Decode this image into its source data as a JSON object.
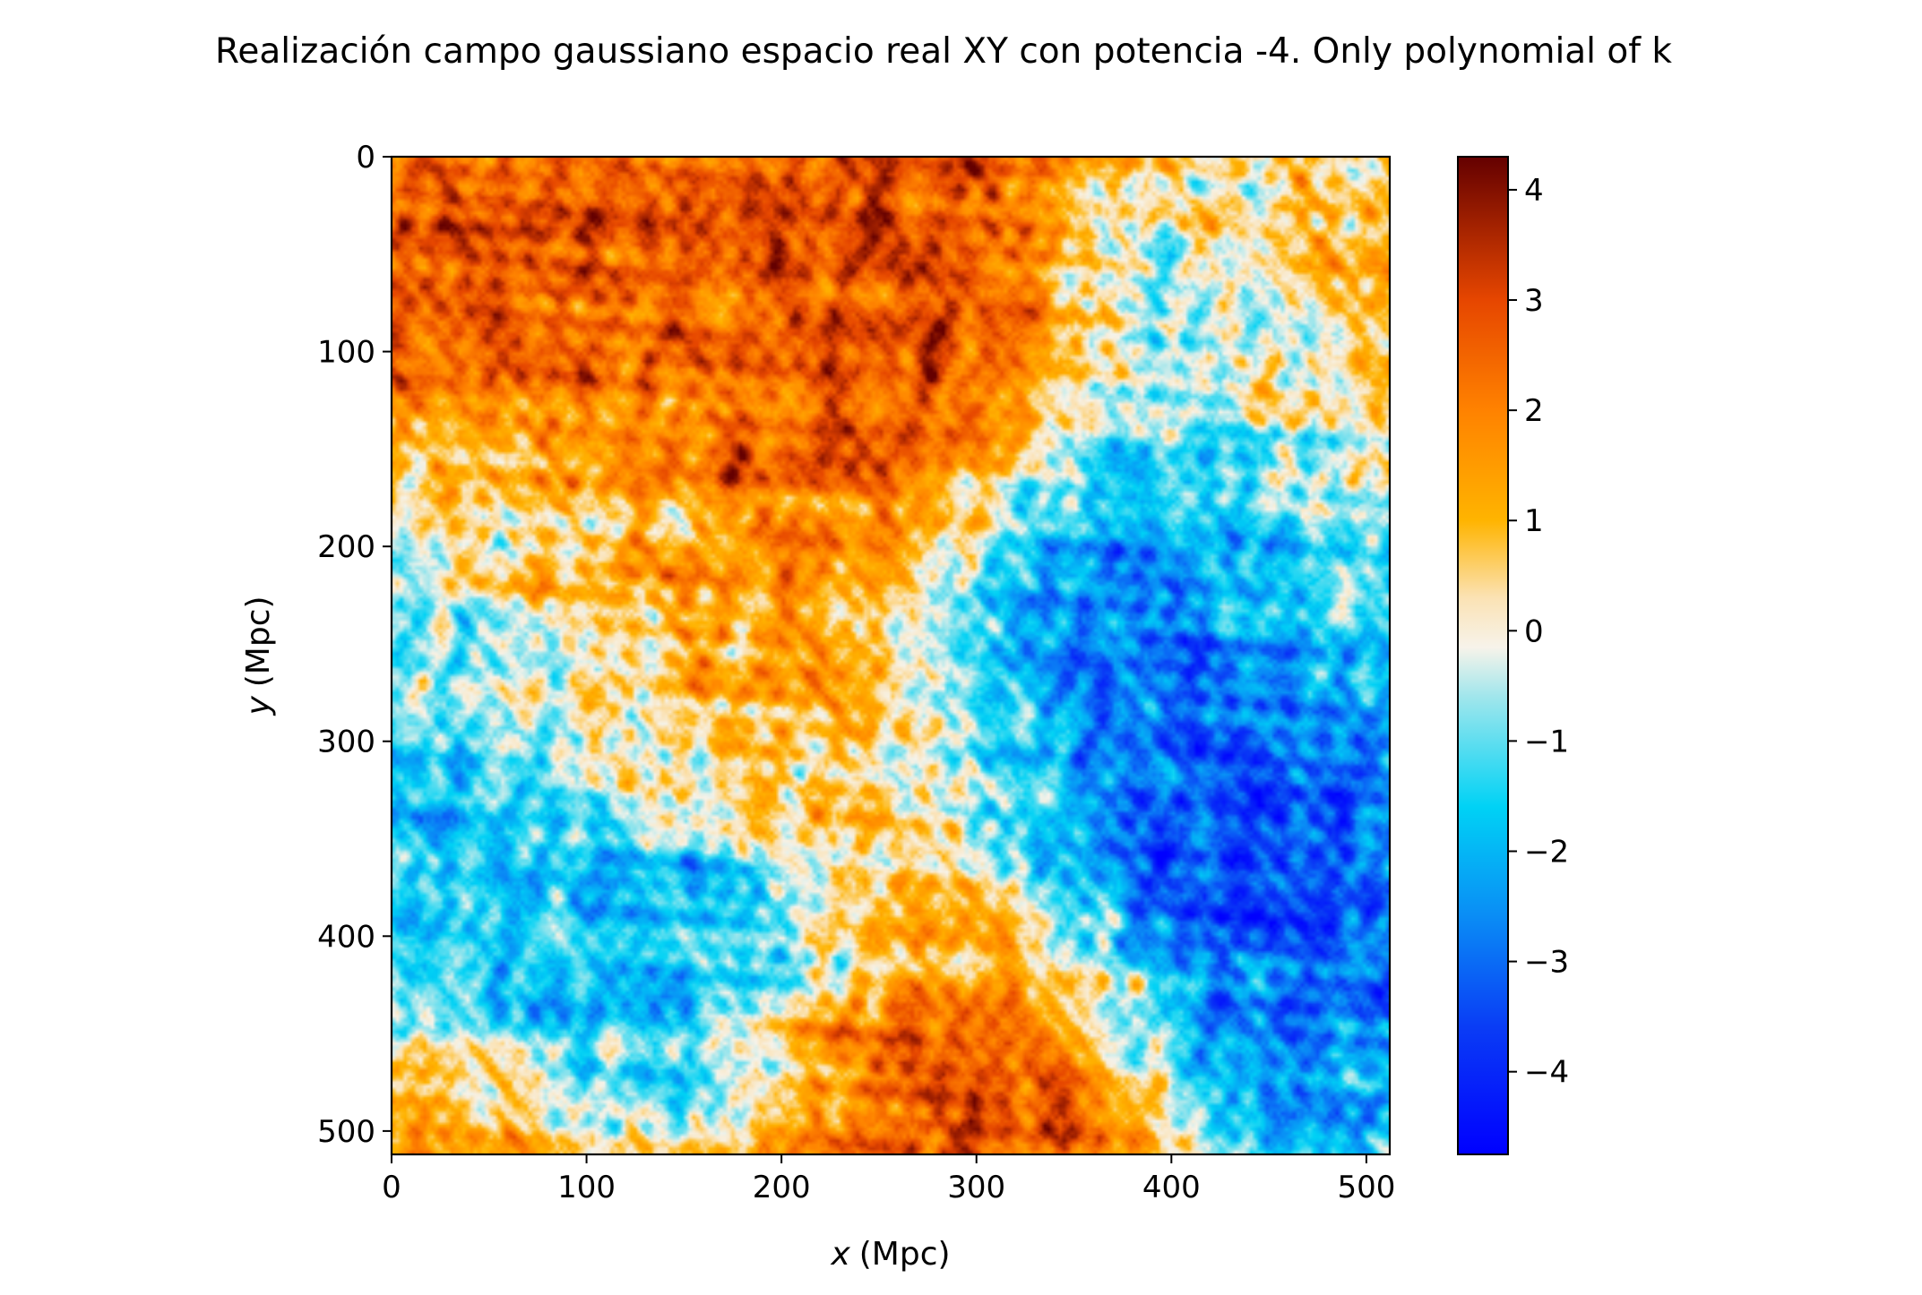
{
  "chart_data": {
    "type": "heatmap",
    "title": "Realización campo gaussiano espacio real XY con potencia -4. Only polynomial of k",
    "xlabel_var": "x",
    "xlabel_unit": "(Mpc)",
    "ylabel_var": "y",
    "ylabel_unit": "(Mpc)",
    "xlim": [
      0,
      512
    ],
    "ylim": [
      512,
      0
    ],
    "x_ticks": [
      0,
      100,
      200,
      300,
      400,
      500
    ],
    "y_ticks": [
      0,
      100,
      200,
      300,
      400,
      500
    ],
    "x_tick_labels": [
      "0",
      "100",
      "200",
      "300",
      "400",
      "500"
    ],
    "y_tick_labels": [
      "0",
      "100",
      "200",
      "300",
      "400",
      "500"
    ],
    "colorbar": {
      "range": [
        -4.75,
        4.3
      ],
      "ticks": [
        4,
        3,
        2,
        1,
        0,
        -1,
        -2,
        -3,
        -4
      ],
      "tick_labels": [
        "4",
        "3",
        "2",
        "1",
        "0",
        "−1",
        "−2",
        "−3",
        "−4"
      ],
      "colormap": [
        {
          "value": -4.75,
          "color": "#0000ff"
        },
        {
          "value": -3.6,
          "color": "#0a3cf5"
        },
        {
          "value": -2.6,
          "color": "#0a8cf5"
        },
        {
          "value": -1.6,
          "color": "#00d2f5"
        },
        {
          "value": -0.6,
          "color": "#a0e6ec"
        },
        {
          "value": -0.15,
          "color": "#f7f3ea"
        },
        {
          "value": 0.3,
          "color": "#fbe2b4"
        },
        {
          "value": 1.0,
          "color": "#ffb400"
        },
        {
          "value": 2.0,
          "color": "#ff8200"
        },
        {
          "value": 3.0,
          "color": "#e64600"
        },
        {
          "value": 4.3,
          "color": "#640000"
        }
      ]
    },
    "field_features": [
      {
        "x": 60,
        "y": 70,
        "value": 3.3
      },
      {
        "x": 80,
        "y": 95,
        "value": 3.2
      },
      {
        "x": 20,
        "y": 55,
        "value": 2.5
      },
      {
        "x": 230,
        "y": 25,
        "value": 3.1
      },
      {
        "x": 270,
        "y": 85,
        "value": 3.3
      },
      {
        "x": 190,
        "y": 170,
        "value": 3.8
      },
      {
        "x": 220,
        "y": 230,
        "value": 2.6
      },
      {
        "x": 130,
        "y": 20,
        "value": 2.0
      },
      {
        "x": 505,
        "y": 55,
        "value": 3.0
      },
      {
        "x": 470,
        "y": 20,
        "value": 1.6
      },
      {
        "x": 300,
        "y": 470,
        "value": 3.4
      },
      {
        "x": 255,
        "y": 495,
        "value": 2.9
      },
      {
        "x": 20,
        "y": 505,
        "value": 2.0
      },
      {
        "x": 120,
        "y": 260,
        "value": 1.5
      },
      {
        "x": 300,
        "y": 350,
        "value": 1.5
      },
      {
        "x": 500,
        "y": 150,
        "value": 1.0
      },
      {
        "x": 400,
        "y": 330,
        "value": -4.3
      },
      {
        "x": 380,
        "y": 280,
        "value": -3.8
      },
      {
        "x": 430,
        "y": 390,
        "value": -3.7
      },
      {
        "x": 320,
        "y": 250,
        "value": -2.7
      },
      {
        "x": 440,
        "y": 130,
        "value": -2.0
      },
      {
        "x": 450,
        "y": 60,
        "value": -1.7
      },
      {
        "x": 480,
        "y": 250,
        "value": -2.0
      },
      {
        "x": 30,
        "y": 360,
        "value": -2.2
      },
      {
        "x": 90,
        "y": 390,
        "value": -2.3
      },
      {
        "x": 170,
        "y": 430,
        "value": -2.2
      },
      {
        "x": 40,
        "y": 200,
        "value": -1.2
      },
      {
        "x": 150,
        "y": 200,
        "value": -0.8
      }
    ]
  }
}
